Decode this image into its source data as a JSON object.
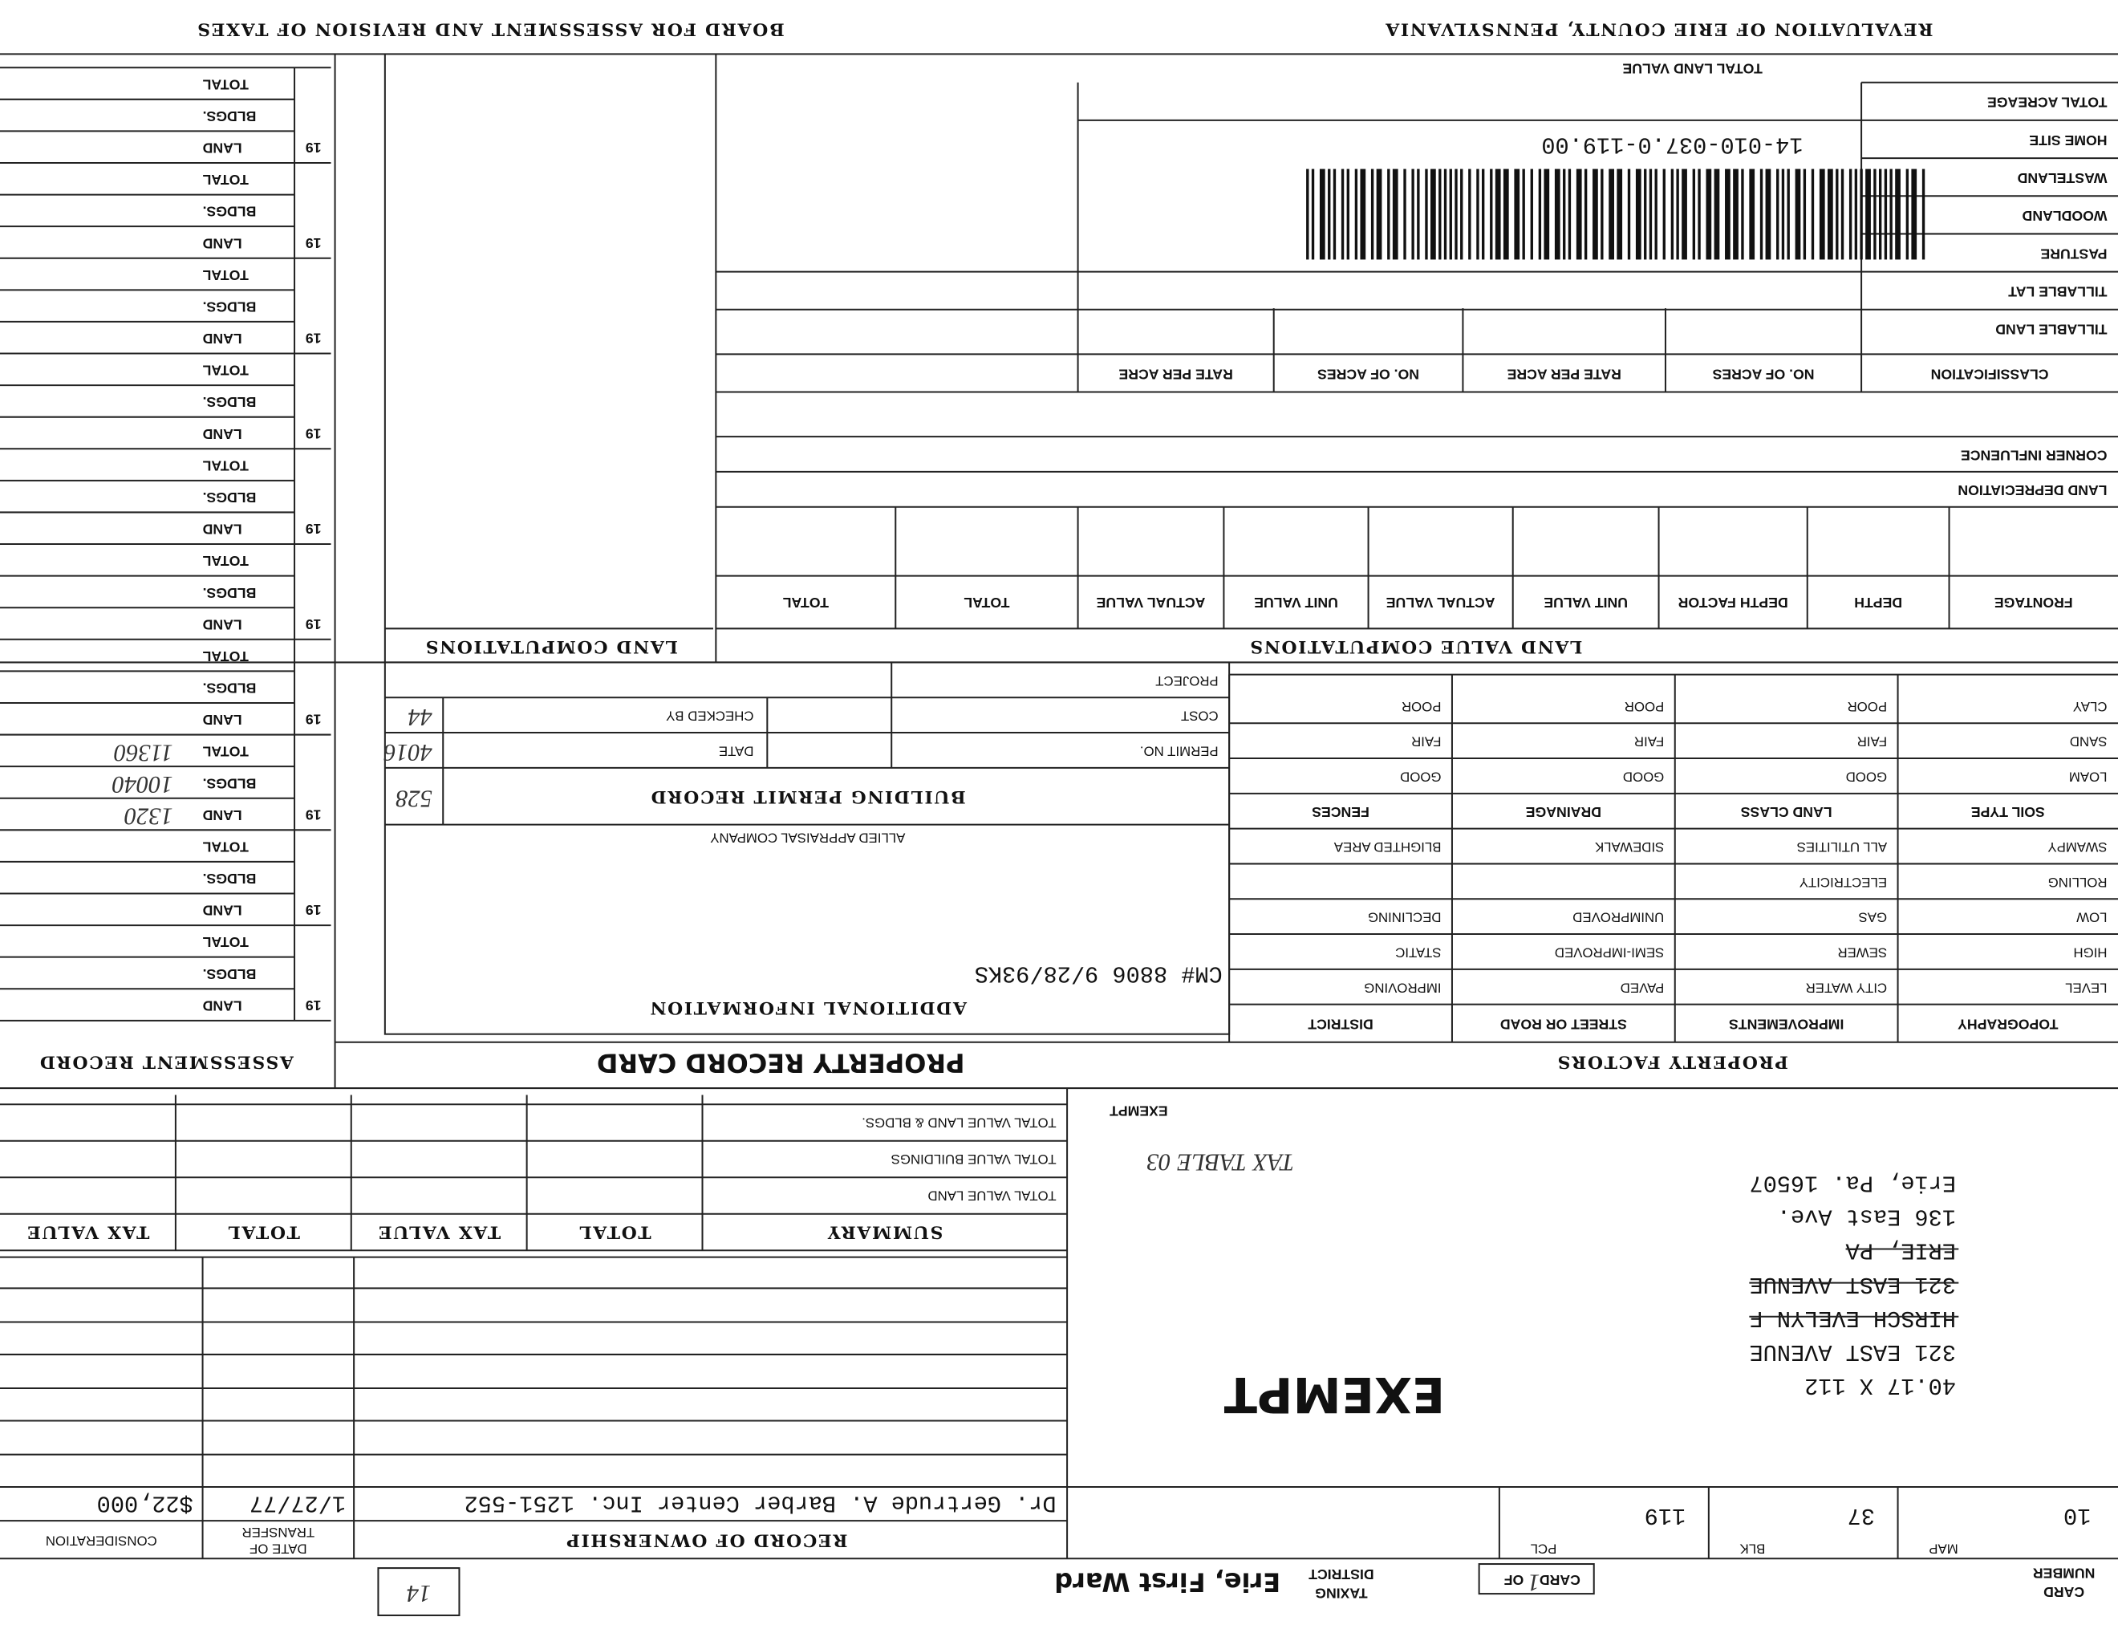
{
  "header": {
    "left": "REVALUATION OF ERIE COUNTY, PENNSYLVANIA",
    "right": "BOARD FOR ASSESSMENT AND REVISION OF TAXES"
  },
  "card": {
    "card_label_1": "CARD",
    "card_label_2": "NUMBER",
    "card_label": "CARD",
    "card_value": "1",
    "of_label": "OF",
    "taxing_label": "TAXING",
    "district_label": "DISTRICT",
    "taxing_district": "Erie, First Ward",
    "box_number": "14"
  },
  "parcel": {
    "map_label": "MAP",
    "map": "10",
    "blk_label": "BLK",
    "blk": "37",
    "pcl_label": "PCL",
    "pcl": "119",
    "lines": [
      {
        "text": "40.17 X 112"
      },
      {
        "text": "321 EAST AVENUE"
      },
      {
        "text": "HIRSCH EVELYN F",
        "struck": true
      },
      {
        "text": "321 EAST AVENUE",
        "struck": true
      },
      {
        "text": "ERIE, PA",
        "struck": true
      },
      {
        "text": "136 East Ave."
      },
      {
        "text": "Erie, Pa. 16507"
      }
    ],
    "exempt": "EXEMPT",
    "exempt_stamp": "EXEMPT",
    "note": "TAX TABLE 03"
  },
  "ownership": {
    "title": "RECORD OF OWNERSHIP",
    "date_label_1": "DATE OF",
    "date_label_2": "TRANSFER",
    "consideration_label": "CONSIDERATION",
    "rows": [
      [
        "Dr. Gertrude A. Barber Center Inc. 1251-552",
        "1/27/77",
        "$22,000"
      ]
    ]
  },
  "summary": {
    "headers": [
      "SUMMARY",
      "TOTAL",
      "TAX VALUE",
      "TOTAL",
      "TAX VALUE"
    ],
    "rows": [
      "TOTAL VALUE LAND",
      "TOTAL VALUE BUILDINGS",
      "TOTAL VALUE LAND & BLDGS."
    ]
  },
  "section_titles": {
    "property_factors": "PROPERTY FACTORS",
    "property_record_card": "PROPERTY RECORD CARD",
    "assessment_record": "ASSESSMENT RECORD"
  },
  "property_factors": {
    "headers": [
      "TOPOGRAPHY",
      "IMPROVEMENTS",
      "STREET OR ROAD",
      "DISTRICT"
    ],
    "rows": [
      [
        "LEVEL",
        "CITY WATER",
        "PAVED",
        "IMPROVING"
      ],
      [
        "HIGH",
        "SEWER",
        "SEMI-IMPROVED",
        "STATIC"
      ],
      [
        "LOW",
        "GAS",
        "UNIMPROVED",
        "DECLINING"
      ],
      [
        "ROLLING",
        "ELECTRICITY",
        null,
        null
      ],
      [
        "SWAMPY",
        "ALL UTILITIES",
        "SIDEWALK",
        "BLIGHTED AREA"
      ]
    ],
    "soil_headers": [
      "SOIL TYPE",
      "LAND CLASS",
      "DRAINAGE",
      "FENCES"
    ],
    "soil_rows": [
      [
        "LOAM",
        "GOOD",
        "GOOD",
        "GOOD"
      ],
      [
        "SAND",
        "FAIR",
        "FAIR",
        "FAIR"
      ],
      [
        "CLAY",
        "POOR",
        "POOR",
        "POOR"
      ]
    ]
  },
  "additional_information": {
    "title": "ADDITIONAL INFORMATION",
    "note": "CM# 8806 9/28/93KS",
    "company": "ALLIED APPRAISAL COMPANY"
  },
  "building_permit": {
    "title": "BUILDING PERMIT RECORD",
    "number": "528",
    "rows": [
      [
        "PERMIT NO.",
        "DATE",
        "4016"
      ],
      [
        "COST",
        "CHECKED BY",
        "44"
      ],
      [
        "PROJECT",
        null,
        null
      ]
    ]
  },
  "land_value_computations": {
    "title": "LAND VALUE COMPUTATIONS",
    "headers": [
      "FRONTAGE",
      "DEPTH",
      "DEPTH FACTOR",
      "UNIT VALUE",
      "ACTUAL VALUE",
      "UNIT VALUE",
      "ACTUAL VALUE",
      "TOTAL",
      "TOTAL"
    ],
    "land_depreciation": "LAND DEPRECIATION",
    "corner_influence": "CORNER INFLUENCE"
  },
  "acreage": {
    "headers": [
      "CLASSIFICATION",
      "NO. OF ACRES",
      "RATE PER ACRE",
      "NO. OF ACRES",
      "RATE PER ACRE"
    ],
    "rows": [
      "TILLABLE LAND",
      "TILLABLE LAT",
      "PASTURE",
      "WOODLAND",
      "WASTELAND",
      "HOME SITE",
      "TOTAL ACREAGE"
    ],
    "total_land_value": "TOTAL LAND VALUE",
    "parcel_id": "14-010-037.0-119.00"
  },
  "land_computations": "LAND COMPUTATIONS",
  "assessment": {
    "row_labels": [
      "LAND",
      "BLDGS.",
      "TOTAL"
    ],
    "blocks": [
      {
        "year": "19"
      },
      {
        "year": "19"
      },
      {
        "year": "19",
        "values": [
          1320,
          10040,
          11360
        ]
      },
      {
        "year": "19"
      },
      {
        "year": "19"
      },
      {
        "year": "19"
      },
      {
        "year": "19"
      },
      {
        "year": "19"
      },
      {
        "year": "19"
      },
      {
        "year": "19"
      }
    ]
  }
}
